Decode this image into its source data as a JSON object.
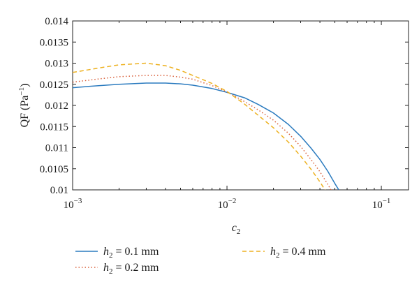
{
  "chart_data": {
    "type": "line",
    "xscale": "log",
    "xlim": [
      0.001,
      0.15
    ],
    "ylim": [
      0.01,
      0.014
    ],
    "xticks": [
      {
        "value": 0.001,
        "base": "10",
        "exp": "−3"
      },
      {
        "value": 0.01,
        "base": "10",
        "exp": "−2"
      },
      {
        "value": 0.1,
        "base": "10",
        "exp": "−1"
      }
    ],
    "yticks": [
      "0.01",
      "0.0105",
      "0.011",
      "0.0115",
      "0.012",
      "0.0125",
      "0.013",
      "0.0135",
      "0.014"
    ],
    "xlabel": "c",
    "xlabel_sub": "2",
    "ylabel": {
      "main": "QF (Pa",
      "sup": "−1",
      "close": ")"
    },
    "grid": false,
    "legend_position": "bottom",
    "series": [
      {
        "name": {
          "var": "h",
          "sub": "2",
          "rest": " = 0.1 mm"
        },
        "color": "#2b7bbf",
        "dash": "solid",
        "points": [
          [
            0.001,
            0.01242
          ],
          [
            0.0015,
            0.01247
          ],
          [
            0.002,
            0.0125
          ],
          [
            0.003,
            0.01253
          ],
          [
            0.004,
            0.01253
          ],
          [
            0.005,
            0.01251
          ],
          [
            0.006,
            0.01248
          ],
          [
            0.008,
            0.0124
          ],
          [
            0.01,
            0.01231
          ],
          [
            0.013,
            0.01218
          ],
          [
            0.016,
            0.01202
          ],
          [
            0.02,
            0.01182
          ],
          [
            0.025,
            0.01155
          ],
          [
            0.03,
            0.01127
          ],
          [
            0.035,
            0.01099
          ],
          [
            0.04,
            0.01072
          ],
          [
            0.045,
            0.01044
          ],
          [
            0.05,
            0.01015
          ],
          [
            0.053,
            0.01
          ]
        ]
      },
      {
        "name": {
          "var": "h",
          "sub": "2",
          "rest": " = 0.2 mm"
        },
        "color": "#d9603b",
        "dash": "dotted",
        "points": [
          [
            0.001,
            0.01255
          ],
          [
            0.0015,
            0.01263
          ],
          [
            0.002,
            0.01268
          ],
          [
            0.003,
            0.01271
          ],
          [
            0.004,
            0.01271
          ],
          [
            0.005,
            0.01267
          ],
          [
            0.006,
            0.01262
          ],
          [
            0.008,
            0.01247
          ],
          [
            0.01,
            0.01232
          ],
          [
            0.013,
            0.01209
          ],
          [
            0.016,
            0.01189
          ],
          [
            0.02,
            0.01165
          ],
          [
            0.025,
            0.01134
          ],
          [
            0.03,
            0.01103
          ],
          [
            0.035,
            0.01072
          ],
          [
            0.04,
            0.01043
          ],
          [
            0.045,
            0.01013
          ],
          [
            0.048,
            0.00995
          ]
        ]
      },
      {
        "name": {
          "var": "h",
          "sub": "2",
          "rest": " = 0.4 mm"
        },
        "color": "#edb120",
        "dash": "dashed",
        "points": [
          [
            0.001,
            0.01278
          ],
          [
            0.0015,
            0.01289
          ],
          [
            0.002,
            0.01296
          ],
          [
            0.003,
            0.013
          ],
          [
            0.004,
            0.01294
          ],
          [
            0.005,
            0.01283
          ],
          [
            0.006,
            0.01271
          ],
          [
            0.008,
            0.01252
          ],
          [
            0.01,
            0.01233
          ],
          [
            0.013,
            0.01203
          ],
          [
            0.016,
            0.01176
          ],
          [
            0.02,
            0.01147
          ],
          [
            0.025,
            0.01113
          ],
          [
            0.03,
            0.0108
          ],
          [
            0.035,
            0.01049
          ],
          [
            0.04,
            0.01019
          ],
          [
            0.044,
            0.00995
          ]
        ]
      }
    ]
  }
}
